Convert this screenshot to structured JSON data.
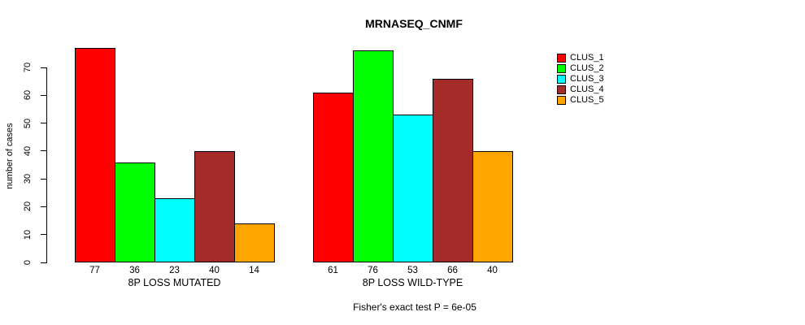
{
  "title": "MRNASEQ_CNMF",
  "chart_data": {
    "type": "bar",
    "title": "MRNASEQ_CNMF",
    "ylabel": "number of cases",
    "xlabel": "",
    "ylim": [
      0,
      70
    ],
    "yticks": [
      0,
      10,
      20,
      30,
      40,
      50,
      60,
      70
    ],
    "grid": false,
    "legend_position": "right",
    "categories": [
      "8P LOSS MUTATED",
      "8P LOSS WILD-TYPE"
    ],
    "series": [
      {
        "name": "CLUS_1",
        "color": "#FF0000",
        "values": [
          77,
          61
        ]
      },
      {
        "name": "CLUS_2",
        "color": "#00FF00",
        "values": [
          36,
          76
        ]
      },
      {
        "name": "CLUS_3",
        "color": "#00FFFF",
        "values": [
          23,
          53
        ]
      },
      {
        "name": "CLUS_4",
        "color": "#A52A2A",
        "values": [
          40,
          66
        ]
      },
      {
        "name": "CLUS_5",
        "color": "#FFA500",
        "values": [
          14,
          40
        ]
      }
    ],
    "groups": [
      {
        "label": "8P LOSS MUTATED",
        "values": [
          77,
          36,
          23,
          40,
          14
        ]
      },
      {
        "label": "8P LOSS WILD-TYPE",
        "values": [
          61,
          76,
          53,
          66,
          40
        ]
      }
    ],
    "bar_value_labels_shown": true,
    "annotation": "Fisher's exact test P = 6e-05"
  },
  "colors": {
    "background": "#FFFFFF",
    "bar_outline": "#000000",
    "text": "#000000"
  }
}
